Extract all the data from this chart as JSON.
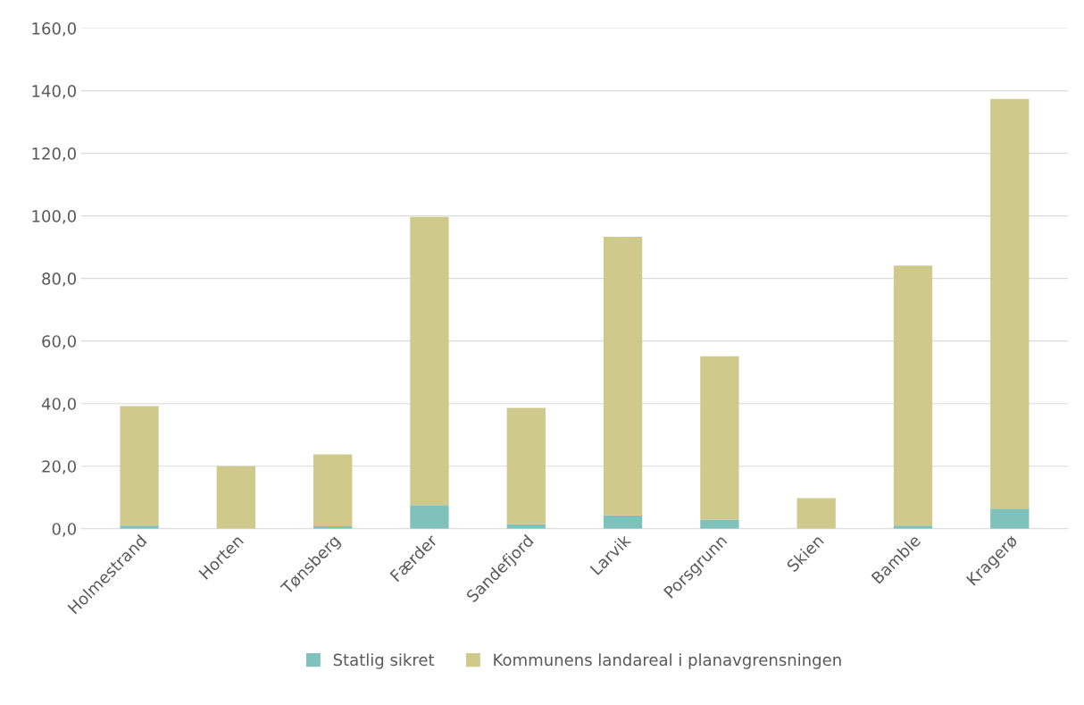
{
  "chart_data": {
    "type": "bar",
    "stacked": true,
    "categories": [
      "Holmestrand",
      "Horten",
      "Tønsberg",
      "Færder",
      "Sandefjord",
      "Larvik",
      "Porsgrunn",
      "Skien",
      "Bamble",
      "Kragerø"
    ],
    "series": [
      {
        "name": "Statlig sikret",
        "color": "#7fc2bc",
        "values": [
          1.0,
          null,
          0.8,
          7.6,
          1.4,
          4.3,
          2.9,
          null,
          1.0,
          6.4
        ]
      },
      {
        "name": "Kommunens landareal i planavgrensningen",
        "color": "#cfc98c",
        "values": [
          38.2,
          20.0,
          23.0,
          92.1,
          37.2,
          89.0,
          52.2,
          9.8,
          83.1,
          131.0
        ]
      }
    ],
    "ylim": [
      0,
      160
    ],
    "yticks": [
      {
        "value": 0,
        "label": "0,0"
      },
      {
        "value": 20,
        "label": "20,0"
      },
      {
        "value": 40,
        "label": "40,0"
      },
      {
        "value": 60,
        "label": "60,0"
      },
      {
        "value": 80,
        "label": "80,0"
      },
      {
        "value": 100,
        "label": "100,0"
      },
      {
        "value": 120,
        "label": "120,0"
      },
      {
        "value": 140,
        "label": "140,0"
      },
      {
        "value": 160,
        "label": "160,0"
      }
    ],
    "grid": "y",
    "legend": "bottom"
  }
}
